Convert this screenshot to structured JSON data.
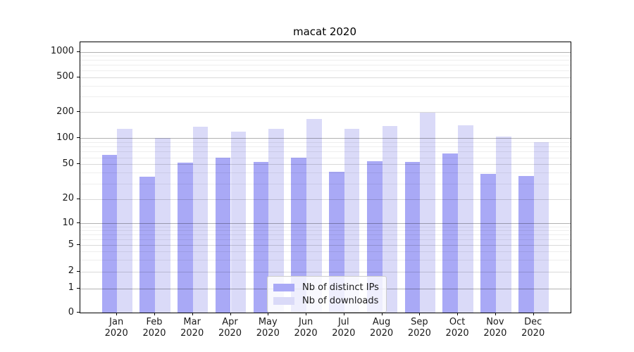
{
  "title": "macat 2020",
  "colors": {
    "distinct_ips": "#a9a9f6",
    "downloads": "#dadaf8",
    "axis": "#000000",
    "grid_major": "#b3b3b3",
    "grid_labeled": "#d9d9d9",
    "grid_minor": "#f0f0f0"
  },
  "legend": {
    "items": [
      {
        "label": "Nb of distinct IPs",
        "color": "#a9a9f6"
      },
      {
        "label": "Nb of downloads",
        "color": "#dadaf8"
      }
    ]
  },
  "chart_data": {
    "type": "bar",
    "title": "macat 2020",
    "categories": [
      "Jan 2020",
      "Feb 2020",
      "Mar 2020",
      "Apr 2020",
      "May 2020",
      "Jun 2020",
      "Jul 2020",
      "Aug 2020",
      "Sep 2020",
      "Oct 2020",
      "Nov 2020",
      "Dec 2020"
    ],
    "series": [
      {
        "name": "Nb of distinct IPs",
        "color": "#a9a9f6",
        "values": [
          64,
          36,
          52,
          59,
          53,
          60,
          41,
          54,
          53,
          66,
          39,
          37
        ]
      },
      {
        "name": "Nb of downloads",
        "color": "#dadaf8",
        "values": [
          127,
          100,
          135,
          119,
          127,
          167,
          128,
          138,
          198,
          140,
          105,
          90
        ]
      }
    ],
    "xlabel": "",
    "ylabel": "",
    "yscale": "symlog",
    "y_ticks": [
      1000,
      500,
      200,
      100,
      50,
      20,
      10,
      5,
      2,
      1,
      0
    ],
    "y_minor_ticks": [
      3,
      4,
      6,
      7,
      8,
      9,
      30,
      40,
      60,
      70,
      80,
      90,
      300,
      400,
      600,
      700,
      800,
      900
    ],
    "ylim": [
      0,
      1300
    ],
    "grid": true,
    "legend_position": "lower center"
  }
}
